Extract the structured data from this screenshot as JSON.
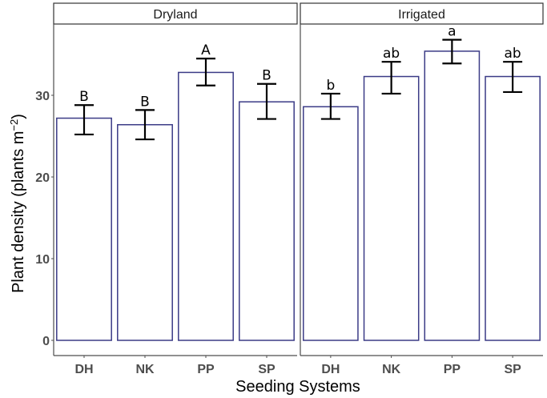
{
  "chart_data": {
    "type": "bar",
    "title": "",
    "xlabel": "Seeding Systems",
    "ylabel": "Plant density (plants m",
    "ylabel_superscript": "−2",
    "ylabel_close": ")",
    "ylim": [
      -2,
      38.5
    ],
    "yticks": [
      0,
      10,
      20,
      30
    ],
    "grid": false,
    "categories": [
      "DH",
      "NK",
      "PP",
      "SP"
    ],
    "bar_outline_color": "#3b3b86",
    "bar_fill_color": "#ffffff",
    "panels": [
      {
        "name": "Dryland",
        "values": [
          27.2,
          26.4,
          32.8,
          29.2
        ],
        "error_low": [
          25.2,
          24.6,
          31.2,
          27.1
        ],
        "error_high": [
          28.8,
          28.2,
          34.5,
          31.4
        ],
        "letters": [
          "B",
          "B",
          "A",
          "B"
        ]
      },
      {
        "name": "Irrigated",
        "values": [
          28.6,
          32.3,
          35.4,
          32.3
        ],
        "error_low": [
          27.1,
          30.2,
          33.9,
          30.4
        ],
        "error_high": [
          30.2,
          34.1,
          36.8,
          34.1
        ],
        "letters": [
          "b",
          "ab",
          "a",
          "ab"
        ]
      }
    ]
  }
}
